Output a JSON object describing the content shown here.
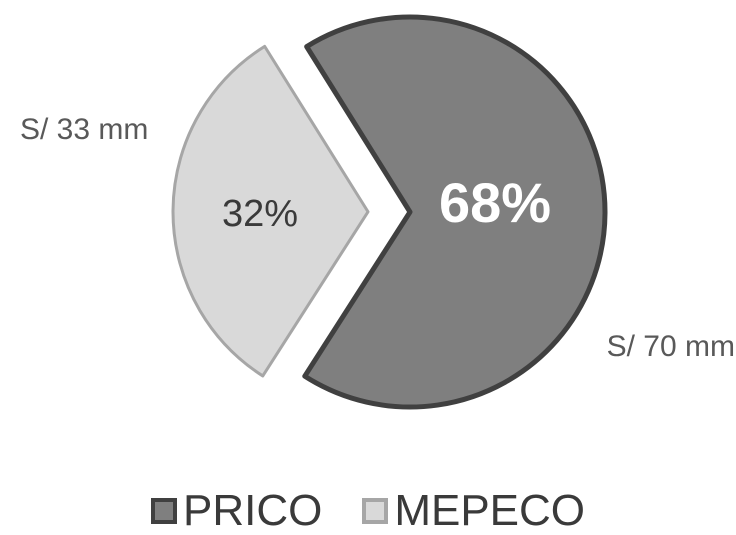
{
  "chart_data": {
    "type": "pie",
    "slices": [
      {
        "label": "PRICO",
        "value": 70,
        "value_label": "S/ 70 mm",
        "percent": 68,
        "percent_label": "68%",
        "fill": "#7f7f7f",
        "stroke": "#404040",
        "exploded": false
      },
      {
        "label": "MEPECO",
        "value": 33,
        "value_label": "S/ 33 mm",
        "percent": 32,
        "percent_label": "32%",
        "fill": "#d9d9d9",
        "stroke": "#a6a6a6",
        "exploded": true
      }
    ],
    "legend_position": "bottom",
    "title": ""
  }
}
